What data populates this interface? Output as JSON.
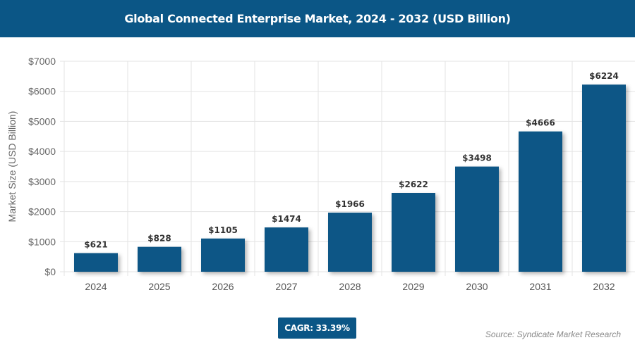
{
  "chart_data": {
    "type": "bar",
    "title": "Global Connected Enterprise Market, 2024 - 2032 (USD Billion)",
    "ylabel": "Market Size (USD Billion)",
    "xlabel": "",
    "categories": [
      "2024",
      "2025",
      "2026",
      "2027",
      "2028",
      "2029",
      "2030",
      "2031",
      "2032"
    ],
    "values": [
      621,
      828,
      1105,
      1474,
      1966,
      2622,
      3498,
      4666,
      6224
    ],
    "data_labels": [
      "$621",
      "$828",
      "$1105",
      "$1474",
      "$1966",
      "$2622",
      "$3498",
      "$4666",
      "$6224"
    ],
    "ylim": [
      0,
      7000
    ],
    "yticks": [
      "$0",
      "$1000",
      "$2000",
      "$3000",
      "$4000",
      "$5000",
      "$6000",
      "$7000"
    ],
    "grid": true,
    "bar_color": "#0b5686"
  },
  "cagr": "CAGR: 33.39%",
  "source": "Source: Syndicate Market Research"
}
